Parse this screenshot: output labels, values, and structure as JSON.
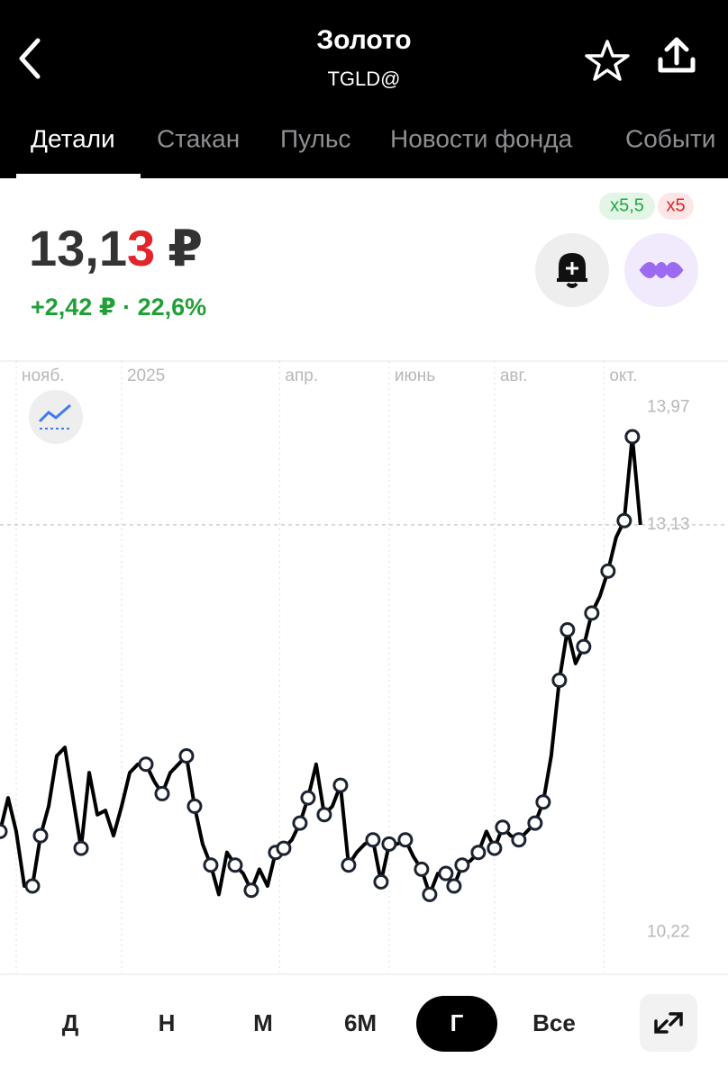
{
  "header": {
    "title": "Золото",
    "subtitle": "TGLD@"
  },
  "tabs": [
    "Детали",
    "Стакан",
    "Пульс",
    "Новости фонда",
    "Событи"
  ],
  "badges": [
    "x5,5",
    "x5"
  ],
  "price": {
    "main": "13,1",
    "last_digit": "3",
    "currency": "₽"
  },
  "change": "+2,42 ₽ · 22,6%",
  "periods": [
    "Д",
    "Н",
    "М",
    "6М",
    "Г",
    "Все"
  ],
  "chart_data": {
    "type": "line",
    "x": [
      0,
      1,
      2,
      3,
      4,
      5,
      6,
      7,
      8,
      9,
      10,
      11,
      12,
      13,
      14,
      15,
      16,
      17,
      18,
      19,
      20,
      21,
      22,
      23,
      24,
      25,
      26,
      27,
      28,
      29,
      30,
      31,
      32,
      33,
      34,
      35,
      36,
      37,
      38,
      39,
      40,
      41,
      42,
      43,
      44,
      45,
      46,
      47,
      48,
      49,
      50,
      51,
      52,
      53,
      54,
      55,
      56,
      57,
      58,
      59,
      60,
      61,
      62,
      63,
      64,
      65,
      66,
      67,
      68,
      69,
      70,
      71,
      72,
      73,
      74,
      75,
      76,
      77,
      78,
      79
    ],
    "series": [
      {
        "color": "#000000",
        "values": [
          10.94,
          11.18,
          10.94,
          10.55,
          10.55,
          10.91,
          11.12,
          11.48,
          11.54,
          11.18,
          10.82,
          11.36,
          11.06,
          11.09,
          10.91,
          11.12,
          11.36,
          11.42,
          11.42,
          11.3,
          11.21,
          11.36,
          11.42,
          11.48,
          11.12,
          10.85,
          10.7,
          10.49,
          10.79,
          10.7,
          10.64,
          10.52,
          10.67,
          10.55,
          10.79,
          10.82,
          10.88,
          11.0,
          11.18,
          11.42,
          11.06,
          11.12,
          11.27,
          10.7,
          10.79,
          10.85,
          10.88,
          10.58,
          10.85,
          10.85,
          10.88,
          10.76,
          10.67,
          10.49,
          10.64,
          10.64,
          10.55,
          10.7,
          10.73,
          10.79,
          10.94,
          10.82,
          10.97,
          10.91,
          10.88,
          10.94,
          11.0,
          11.15,
          11.48,
          12.02,
          12.38,
          12.14,
          12.26,
          12.5,
          12.62,
          12.8,
          13.04,
          13.16,
          13.76,
          13.13
        ]
      }
    ],
    "markers": [
      0,
      4,
      5,
      10,
      18,
      20,
      23,
      24,
      26,
      29,
      31,
      34,
      35,
      37,
      38,
      40,
      42,
      43,
      46,
      47,
      48,
      50,
      52,
      53,
      55,
      56,
      57,
      59,
      61,
      62,
      64,
      66,
      67,
      69,
      70,
      72,
      73,
      75,
      77,
      78
    ],
    "xlim": [
      0,
      89.8
    ],
    "xticks": [
      {
        "value": 2,
        "label": "нояб."
      },
      {
        "value": 15,
        "label": "2025"
      },
      {
        "value": 34.5,
        "label": "апр."
      },
      {
        "value": 48,
        "label": "июнь"
      },
      {
        "value": 61,
        "label": "авг."
      },
      {
        "value": 74.5,
        "label": "окт."
      }
    ],
    "ylim": [
      9.92,
      14.3
    ],
    "yticks": [
      {
        "value": 13.97,
        "label": "13,97"
      },
      {
        "value": 13.13,
        "label": "13,13"
      },
      {
        "value": 10.22,
        "label": "10,22"
      }
    ]
  }
}
